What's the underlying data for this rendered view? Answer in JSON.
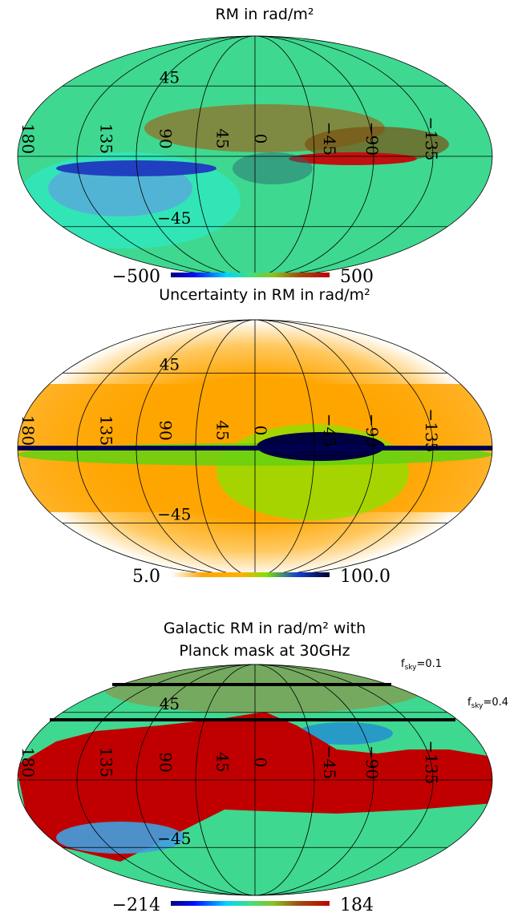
{
  "panels": [
    {
      "title_lines": [
        "RM in rad/m²"
      ],
      "lat_labels": [
        "45",
        "−45"
      ],
      "lon_labels": [
        "180",
        "135",
        "90",
        "45",
        "0",
        "−45",
        "−90",
        "−135"
      ],
      "colorbar": {
        "min": "−500",
        "max": "500"
      }
    },
    {
      "title_lines": [
        "Uncertainty in RM in rad/m²"
      ],
      "lat_labels": [
        "45",
        "−45"
      ],
      "lon_labels": [
        "180",
        "135",
        "90",
        "45",
        "0",
        "−45",
        "−90",
        "−135"
      ],
      "colorbar": {
        "min": "5.0",
        "max": "100.0"
      }
    },
    {
      "title_lines": [
        "Galactic RM in rad/m²  with",
        "Planck mask at 30GHz"
      ],
      "lat_labels": [
        "45",
        "−45"
      ],
      "lon_labels": [
        "180",
        "135",
        "90",
        "45",
        "0",
        "−45",
        "−90",
        "−135"
      ],
      "colorbar": {
        "min": "−214",
        "max": "184"
      },
      "sky_fractions": [
        {
          "symbol": "f",
          "subscript": "sky",
          "text": "=0.1"
        },
        {
          "symbol": "f",
          "subscript": "sky",
          "text": "=0.4"
        }
      ]
    }
  ]
}
